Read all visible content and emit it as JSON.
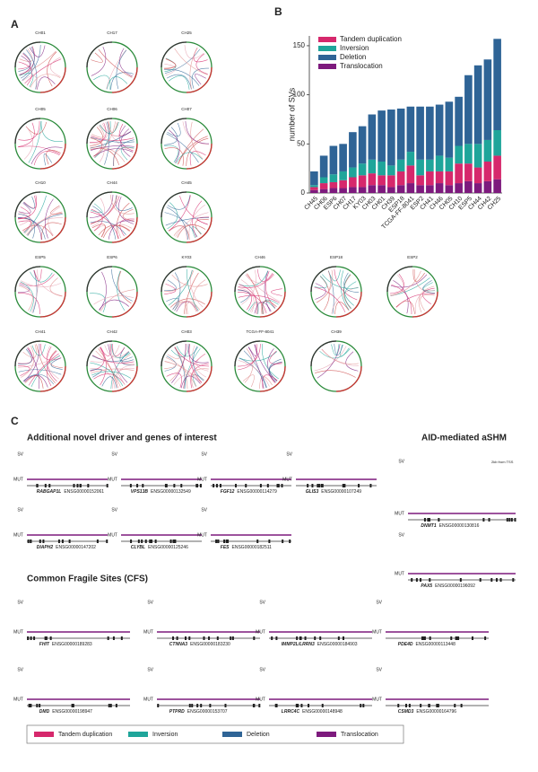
{
  "panel_a": {
    "label": "A",
    "plots": [
      "CH01",
      "CH17",
      "CH25",
      "CH05",
      "CH06",
      "CH07",
      "CH10",
      "CH44",
      "CH45",
      "ESP5",
      "ESP6",
      "KY03",
      "CH46",
      "ESP18",
      "ESP2",
      "CH41",
      "CH42",
      "CH03",
      "TCGA-FF-8041",
      "CH39"
    ]
  },
  "panel_b": {
    "label": "B"
  },
  "chart_data": {
    "type": "stacked-bar",
    "y_label": "number of SVs",
    "categories": [
      "CH45",
      "CH06",
      "ESP6",
      "CH07",
      "CH17",
      "KY03",
      "CH03",
      "CH01",
      "CH39",
      "ESP18",
      "TCGA-FF-8041",
      "ESP2",
      "CH41",
      "CH46",
      "CH05",
      "CH10",
      "ESP5",
      "CH44",
      "CH42",
      "CH25"
    ],
    "series": [
      {
        "name": "Tandem duplication",
        "color": "#d6286c",
        "values": [
          3,
          6,
          6,
          8,
          10,
          12,
          12,
          10,
          12,
          14,
          18,
          10,
          14,
          12,
          14,
          20,
          18,
          16,
          20,
          24
        ]
      },
      {
        "name": "Inversion",
        "color": "#1fa59a",
        "values": [
          2,
          6,
          8,
          9,
          10,
          12,
          14,
          14,
          10,
          12,
          14,
          16,
          12,
          16,
          14,
          18,
          20,
          24,
          22,
          26
        ]
      },
      {
        "name": "Deletion",
        "color": "#2f6496",
        "values": [
          14,
          22,
          29,
          28,
          36,
          38,
          46,
          52,
          57,
          52,
          46,
          54,
          54,
          52,
          57,
          50,
          70,
          80,
          82,
          93
        ]
      },
      {
        "name": "Translocation",
        "color": "#7d1a7d",
        "values": [
          3,
          4,
          5,
          5,
          6,
          6,
          8,
          8,
          6,
          8,
          10,
          8,
          8,
          10,
          8,
          10,
          12,
          10,
          12,
          14
        ]
      }
    ],
    "ylim": [
      0,
      160
    ],
    "yticks": [
      0,
      50,
      100,
      150
    ],
    "legend": "upper-left"
  },
  "panel_c": {
    "label": "C",
    "title_drivers": "Additional novel driver and genes of interest",
    "title_aid": "AID-mediated aSHM",
    "title_cfs": "Common Fragile Sites (CFS)",
    "sv": "SV",
    "mut": "MUT",
    "tss_note": "2kb from TSS",
    "drivers": [
      {
        "gene": "RABGAP1L",
        "id": "ENSG00000152061"
      },
      {
        "gene": "VPS13B",
        "id": "ENSG00000132549"
      },
      {
        "gene": "FGF12",
        "id": "ENSG00000114279"
      },
      {
        "gene": "GLIS3",
        "id": "ENSG00000107249"
      },
      {
        "gene": "DIAPH2",
        "id": "ENSG00000147202"
      },
      {
        "gene": "CLYBL",
        "id": "ENSG00000125246"
      },
      {
        "gene": "FES",
        "id": "ENSG00000182511"
      }
    ],
    "aid": [
      {
        "gene": "DNMT1",
        "id": "ENSG00000130816"
      },
      {
        "gene": "PAX5",
        "id": "ENSG00000196092"
      }
    ],
    "cfs": [
      {
        "gene": "FHIT",
        "id": "ENSG00000189283"
      },
      {
        "gene": "CTNNA3",
        "id": "ENSG00000183230"
      },
      {
        "gene": "IMMP2L/LRRN3",
        "id": "ENSG00000184903"
      },
      {
        "gene": "PDE4D",
        "id": "ENSG00000113448"
      },
      {
        "gene": "DMD",
        "id": "ENSG00000198947"
      },
      {
        "gene": "PTPRD",
        "id": "ENSG00000153707"
      },
      {
        "gene": "LRRC4C",
        "id": "ENSG00000148948"
      },
      {
        "gene": "CSMD3",
        "id": "ENSG00000164796"
      }
    ]
  }
}
